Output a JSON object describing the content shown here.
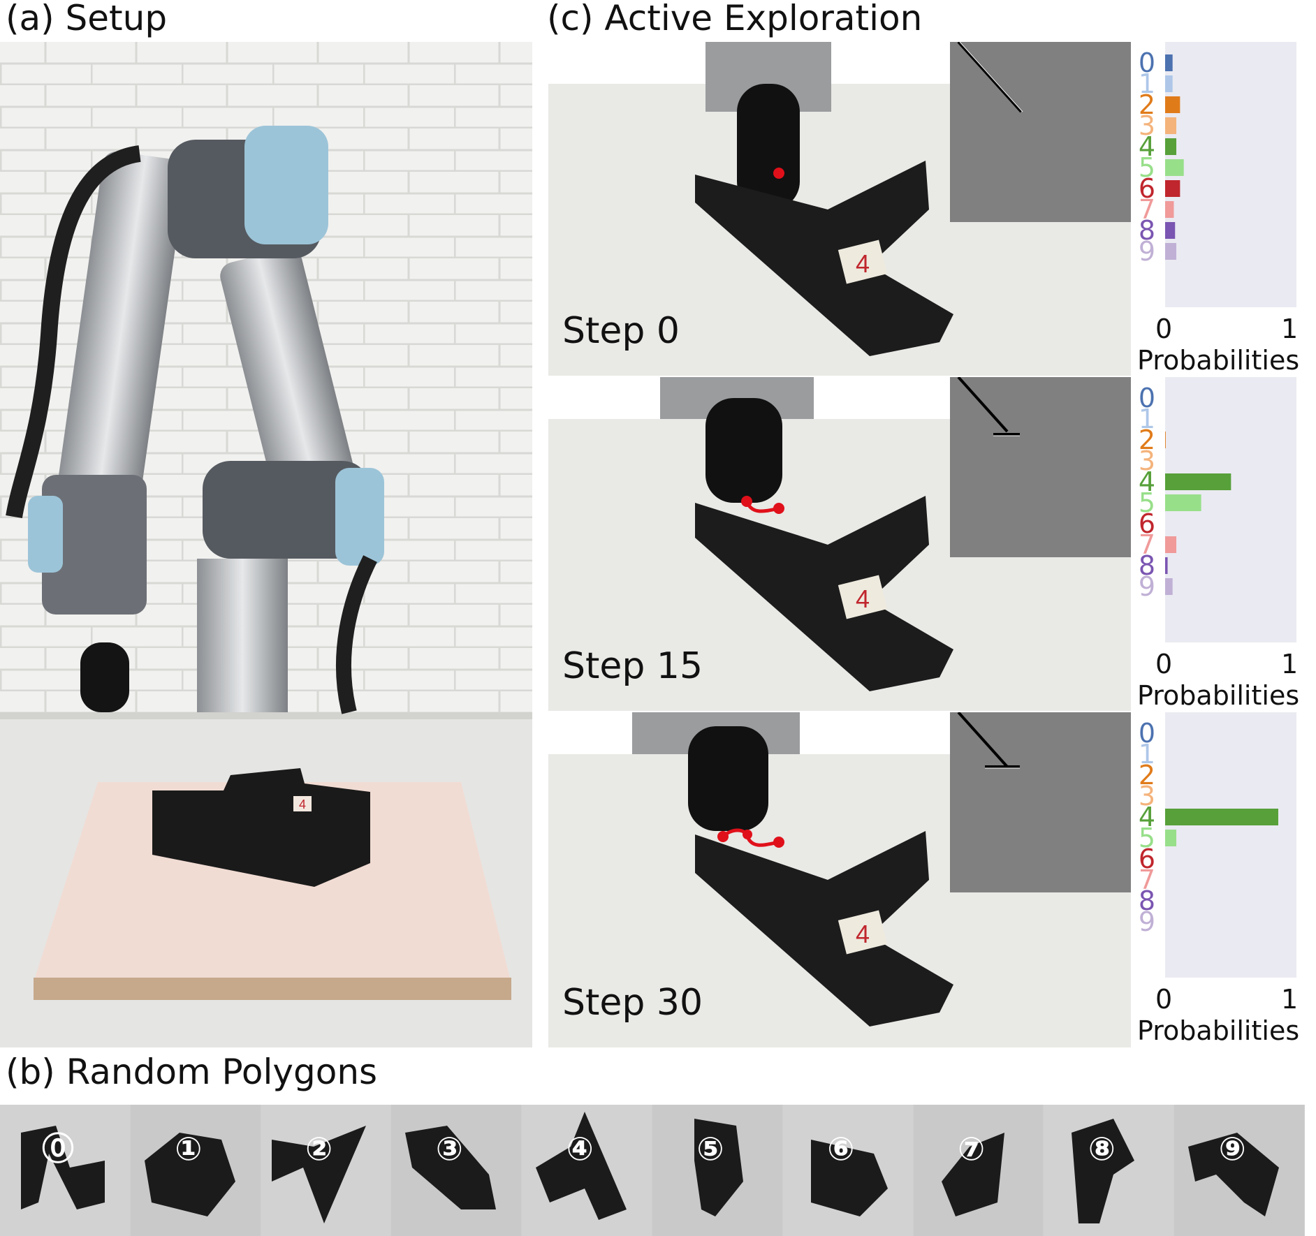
{
  "panels": {
    "setup": {
      "label": "(a) Setup",
      "object_tag": "4"
    },
    "polygons": {
      "label": "(b) Random Polygons",
      "badges": [
        "⓪",
        "①",
        "②",
        "③",
        "④",
        "⑤",
        "⑥",
        "⑦",
        "⑧",
        "⑨"
      ]
    },
    "exploration": {
      "label": "(c) Active Exploration"
    }
  },
  "steps": [
    {
      "label": "Step 0",
      "object_tag": "4"
    },
    {
      "label": "Step 15",
      "object_tag": "4"
    },
    {
      "label": "Step 30",
      "object_tag": "4"
    }
  ],
  "chart_data": [
    {
      "type": "bar",
      "orientation": "horizontal",
      "title": "Step 0",
      "categories": [
        "0",
        "1",
        "2",
        "3",
        "4",
        "5",
        "6",
        "7",
        "8",
        "9"
      ],
      "values": [
        0.06,
        0.06,
        0.12,
        0.09,
        0.09,
        0.15,
        0.12,
        0.07,
        0.08,
        0.09
      ],
      "xlabel": "Probabilities",
      "xlim": [
        0,
        1
      ],
      "xticks": [
        "0",
        "1"
      ]
    },
    {
      "type": "bar",
      "orientation": "horizontal",
      "title": "Step 15",
      "categories": [
        "0",
        "1",
        "2",
        "3",
        "4",
        "5",
        "6",
        "7",
        "8",
        "9"
      ],
      "values": [
        0.0,
        0.0,
        0.005,
        0.0,
        0.53,
        0.29,
        0.0,
        0.09,
        0.02,
        0.06
      ],
      "xlabel": "Probabilities",
      "xlim": [
        0,
        1
      ],
      "xticks": [
        "0",
        "1"
      ]
    },
    {
      "type": "bar",
      "orientation": "horizontal",
      "title": "Step 30",
      "categories": [
        "0",
        "1",
        "2",
        "3",
        "4",
        "5",
        "6",
        "7",
        "8",
        "9"
      ],
      "values": [
        0.0,
        0.0,
        0.0,
        0.0,
        0.91,
        0.09,
        0.0,
        0.0,
        0.0,
        0.0
      ],
      "xlabel": "Probabilities",
      "xlim": [
        0,
        1
      ],
      "xticks": [
        "0",
        "1"
      ]
    }
  ],
  "class_colors": [
    "#4c72b0",
    "#aec7e8",
    "#e07b1a",
    "#f4b37b",
    "#57a03a",
    "#98df8a",
    "#c0262d",
    "#f09a9a",
    "#7a55b1",
    "#c0b0d5"
  ]
}
